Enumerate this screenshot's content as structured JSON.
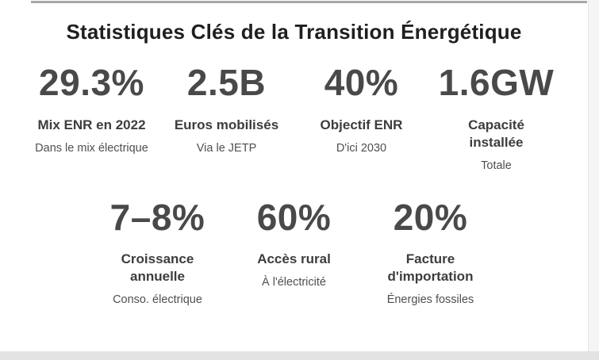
{
  "title": "Statistiques Clés de la Transition Énergétique",
  "rows": [
    {
      "stats": [
        {
          "value": "29.3%",
          "label": "Mix ENR en 2022",
          "sub": "Dans le mix électrique"
        },
        {
          "value": "2.5B",
          "label": "Euros mobilisés",
          "sub": "Via le JETP"
        },
        {
          "value": "40%",
          "label": "Objectif ENR",
          "sub": "D'ici 2030"
        },
        {
          "value": "1.6GW",
          "label": "Capacité\ninstallée",
          "sub": "Totale"
        }
      ]
    },
    {
      "stats": [
        {
          "value": "7–8%",
          "label": "Croissance\nannuelle",
          "sub": "Conso. électrique"
        },
        {
          "value": "60%",
          "label": "Accès rural",
          "sub": "À l'électricité"
        },
        {
          "value": "20%",
          "label": "Facture\nd'importation",
          "sub": "Énergies fossiles"
        }
      ]
    }
  ],
  "colors": {
    "title_text": "#1f1f1f",
    "stat_value_text": "#494949",
    "stat_label_text": "#3d3d3d",
    "stat_sub_text": "#4f4f4f",
    "top_rule": "#a8a8a8",
    "side_strip": "#f5f5f5",
    "bottom_bar": "#e3e3e3",
    "background": "#ffffff"
  }
}
